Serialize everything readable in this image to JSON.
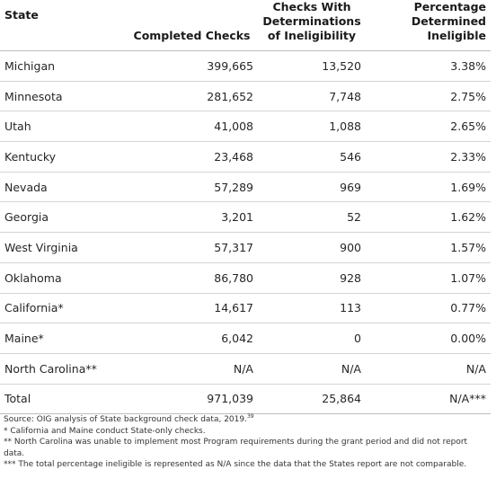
{
  "table": {
    "headers": {
      "state": "State",
      "completed": "Completed Checks",
      "ineligible": "Checks With Determinations of Ineligibility",
      "percentage": "Percentage Determined Ineligible"
    },
    "rows": [
      {
        "state": "Michigan",
        "completed": "399,665",
        "ineligible": "13,520",
        "percentage": "3.38%"
      },
      {
        "state": "Minnesota",
        "completed": "281,652",
        "ineligible": "7,748",
        "percentage": "2.75%"
      },
      {
        "state": "Utah",
        "completed": "41,008",
        "ineligible": "1,088",
        "percentage": "2.65%"
      },
      {
        "state": "Kentucky",
        "completed": "23,468",
        "ineligible": "546",
        "percentage": "2.33%"
      },
      {
        "state": "Nevada",
        "completed": "57,289",
        "ineligible": "969",
        "percentage": "1.69%"
      },
      {
        "state": "Georgia",
        "completed": "3,201",
        "ineligible": "52",
        "percentage": "1.62%"
      },
      {
        "state": "West Virginia",
        "completed": "57,317",
        "ineligible": "900",
        "percentage": "1.57%"
      },
      {
        "state": "Oklahoma",
        "completed": "86,780",
        "ineligible": "928",
        "percentage": "1.07%"
      },
      {
        "state": "California*",
        "completed": "14,617",
        "ineligible": "113",
        "percentage": "0.77%"
      },
      {
        "state": "Maine*",
        "completed": "6,042",
        "ineligible": "0",
        "percentage": "0.00%"
      },
      {
        "state": "North Carolina**",
        "completed": "N/A",
        "ineligible": "N/A",
        "percentage": "N/A"
      }
    ],
    "total": {
      "state": "Total",
      "completed": "971,039",
      "ineligible": "25,864",
      "percentage": "N/A***"
    }
  },
  "notes": {
    "source": "Source: OIG analysis of State background check data, 2019.",
    "source_ref": "39",
    "note1": "* California and Maine conduct State-only checks.",
    "note2": "** North Carolina was unable to implement most Program requirements during the grant period and did not report data.",
    "note3": "*** The total percentage ineligible is represented as N/A since the data that the States report are not comparable."
  }
}
